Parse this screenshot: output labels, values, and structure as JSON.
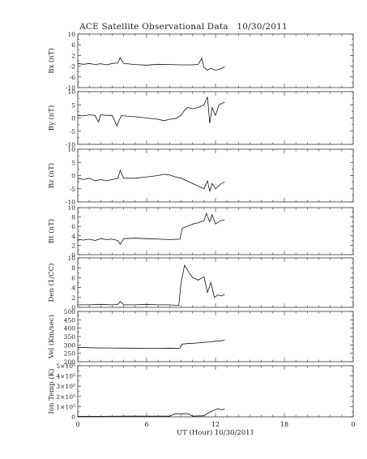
{
  "chart_data": {
    "type": "line",
    "title": "ACE Satellite Observational Data",
    "date": "10/30/2011",
    "xlabel": "UT (Hour)",
    "x_range": [
      0,
      24
    ],
    "x_ticks": [
      "0",
      "6",
      "12",
      "18",
      "0"
    ],
    "grid": false,
    "panels": [
      {
        "ylabel": "Bx (nT)",
        "ylim": [
          -10,
          10
        ],
        "yticks": [
          "10",
          "6",
          "2",
          "-2",
          "-6",
          "-10"
        ],
        "series": [
          {
            "x": [
              0,
              0.5,
              1,
              1.5,
              2,
              2.5,
              3,
              3.5,
              3.7,
              4,
              5,
              6,
              7,
              8,
              9,
              10,
              10.5,
              10.8,
              11,
              11.3,
              11.6,
              12,
              12.5,
              12.8
            ],
            "y": [
              -1,
              -1.3,
              -1,
              -1.4,
              -1.1,
              -1.5,
              -1,
              -0.8,
              1.2,
              -1,
              -1.4,
              -1.6,
              -1.3,
              -1.4,
              -1.5,
              -1.5,
              -1.3,
              1,
              -2.5,
              -3.5,
              -2.8,
              -3.5,
              -2.9,
              -2.2
            ]
          }
        ]
      },
      {
        "ylabel": "By (nT)",
        "ylim": [
          -10,
          10
        ],
        "yticks": [
          "10",
          "5",
          "0",
          "-5",
          "-10"
        ],
        "series": [
          {
            "x": [
              0,
              0.5,
              1,
              1.5,
              1.8,
              2,
              2.5,
              3,
              3.4,
              3.6,
              3.8,
              4,
              5,
              6,
              7,
              7.5,
              8,
              8.5,
              9,
              9.3,
              9.6,
              10,
              10.5,
              11,
              11.3,
              11.5,
              11.7,
              12,
              12.3,
              12.8
            ],
            "y": [
              1,
              0.8,
              1.2,
              1,
              -1.5,
              1.2,
              1,
              1,
              -3,
              -1,
              1,
              0.8,
              0.5,
              0,
              -0.5,
              -1,
              -0.5,
              -0.2,
              1,
              3,
              4,
              3.5,
              4,
              5,
              8,
              -2,
              4,
              1,
              5,
              6
            ]
          }
        ]
      },
      {
        "ylabel": "Bz (nT)",
        "ylim": [
          -10,
          10
        ],
        "yticks": [
          "10",
          "5",
          "0",
          "-5",
          "-10"
        ],
        "series": [
          {
            "x": [
              0,
              0.5,
              1,
              1.5,
              2,
              2.5,
              3,
              3.5,
              3.7,
              4,
              5,
              6,
              7,
              7.5,
              8,
              8.5,
              9,
              9.5,
              10,
              10.5,
              11,
              11.3,
              11.5,
              11.7,
              12,
              12.5,
              12.8
            ],
            "y": [
              -1,
              -1.5,
              -1,
              -2,
              -1.5,
              -2,
              -1.5,
              -1,
              2,
              -1,
              -1,
              -0.5,
              0,
              0.5,
              0.2,
              -0.5,
              -1,
              -2,
              -3,
              -4,
              -5,
              -2,
              -6,
              -3,
              -5,
              -3,
              -2.5
            ]
          }
        ]
      },
      {
        "ylabel": "Bt (nT)",
        "ylim": [
          0,
          10
        ],
        "yticks": [
          "10",
          "8",
          "6",
          "4",
          "2",
          "0"
        ],
        "series": [
          {
            "x": [
              0,
              0.5,
              1,
              1.5,
              2,
              2.5,
              3,
              3.5,
              3.7,
              4,
              5,
              6,
              7,
              8,
              8.9,
              9.1,
              9.5,
              10,
              10.5,
              11,
              11.2,
              11.5,
              11.7,
              12,
              12.4,
              12.8
            ],
            "y": [
              3.2,
              3.1,
              3.3,
              3,
              3.4,
              3.2,
              3.3,
              3,
              2.2,
              3.4,
              3.5,
              3.4,
              3.3,
              3.2,
              3.3,
              5.6,
              6,
              6.5,
              6.8,
              7.2,
              8.8,
              7,
              8.5,
              6.5,
              7.2,
              7.4
            ]
          }
        ]
      },
      {
        "ylabel": "Den (1/CC)",
        "ylim": [
          0,
          10
        ],
        "yticks": [
          "10",
          "8",
          "6",
          "4",
          "2",
          "0"
        ],
        "series": [
          {
            "x": [
              0,
              1,
              2,
              3,
              3.5,
              3.7,
              4,
              5,
              6,
              7,
              8,
              8.8,
              9,
              9.3,
              9.7,
              10,
              10.5,
              11,
              11.3,
              11.6,
              11.9,
              12.2,
              12.5,
              12.8
            ],
            "y": [
              0.5,
              0.5,
              0.6,
              0.5,
              0.6,
              1.2,
              0.5,
              0.5,
              0.6,
              0.5,
              0.5,
              0.4,
              5,
              8.5,
              7,
              6,
              5.5,
              6.2,
              3,
              5,
              2,
              2.5,
              2.3,
              2.6
            ]
          }
        ]
      },
      {
        "ylabel": "Vel (Km/sec)",
        "ylim": [
          200,
          500
        ],
        "yticks": [
          "500",
          "450",
          "400",
          "350",
          "300",
          "250",
          "200"
        ],
        "series": [
          {
            "x": [
              0,
              1,
              2,
              3,
              4,
              5,
              6,
              7,
              8,
              8.9,
              9.1,
              9.5,
              10,
              10.5,
              11,
              11.5,
              12,
              12.5,
              12.8
            ],
            "y": [
              285,
              283,
              282,
              282,
              281,
              281,
              280,
              280,
              281,
              280,
              305,
              308,
              310,
              312,
              315,
              318,
              322,
              325,
              328
            ]
          }
        ]
      },
      {
        "ylabel": "Ion Temp (K)",
        "ylim": [
          0,
          500000
        ],
        "yticks": [
          "5×10⁵",
          "4×10⁵",
          "3×10⁵",
          "2×10⁵",
          "1×10⁵",
          "0"
        ],
        "series": [
          {
            "x": [
              0,
              2,
              4,
              6,
              8,
              8.5,
              9.6,
              10,
              11,
              11.4,
              11.8,
              12.2,
              12.5,
              12.8
            ],
            "y": [
              5000,
              5000,
              6000,
              6000,
              6000,
              30000,
              30000,
              6000,
              10000,
              40000,
              60000,
              80000,
              70000,
              75000
            ]
          }
        ]
      }
    ]
  }
}
